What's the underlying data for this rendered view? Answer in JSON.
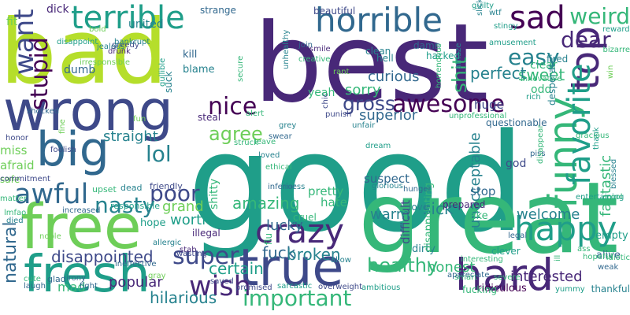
{
  "word_cloud": {
    "palette": [
      "#440154",
      "#482878",
      "#3e4989",
      "#31688e",
      "#26828e",
      "#1f9e89",
      "#35b779",
      "#6ece58",
      "#b5de2b",
      "#fde725"
    ],
    "words": [
      {
        "text": "bad"
      },
      {
        "text": "best"
      },
      {
        "text": "good"
      },
      {
        "text": "great"
      },
      {
        "text": "wrong"
      },
      {
        "text": "free"
      },
      {
        "text": "fresh"
      },
      {
        "text": "big"
      },
      {
        "text": "true"
      },
      {
        "text": "top"
      },
      {
        "text": "funny"
      },
      {
        "text": "hard"
      },
      {
        "text": "horrible"
      },
      {
        "text": "terrible"
      },
      {
        "text": "sad"
      },
      {
        "text": "favorite"
      },
      {
        "text": "happy"
      },
      {
        "text": "crazy"
      },
      {
        "text": "awful"
      },
      {
        "text": "wish"
      },
      {
        "text": "want"
      },
      {
        "text": "nice"
      },
      {
        "text": "important"
      },
      {
        "text": "awesome"
      },
      {
        "text": "weird"
      },
      {
        "text": "dear"
      },
      {
        "text": "easy"
      },
      {
        "text": "stupid"
      },
      {
        "text": "super"
      },
      {
        "text": "lol"
      },
      {
        "text": "poor"
      },
      {
        "text": "nasty"
      },
      {
        "text": "gross"
      },
      {
        "text": "shit"
      },
      {
        "text": "agree"
      },
      {
        "text": "healthy"
      },
      {
        "text": "natural"
      },
      {
        "text": "disappointed"
      },
      {
        "text": "fuck"
      },
      {
        "text": "broken"
      },
      {
        "text": "sweet"
      },
      {
        "text": "perfect"
      },
      {
        "text": "sick"
      },
      {
        "text": "amazing"
      },
      {
        "text": "certain"
      },
      {
        "text": "hilarious"
      },
      {
        "text": "interested"
      },
      {
        "text": "fantastic"
      },
      {
        "text": "curious"
      },
      {
        "text": "sorry"
      },
      {
        "text": "superior"
      },
      {
        "text": "unacceptable"
      },
      {
        "text": "welcome"
      },
      {
        "text": "straight"
      },
      {
        "text": "popular"
      },
      {
        "text": "grand"
      },
      {
        "text": "worth"
      },
      {
        "text": "lucky"
      },
      {
        "text": "warm"
      },
      {
        "text": "honest"
      },
      {
        "text": "difficult"
      },
      {
        "text": "pretty"
      },
      {
        "text": "hate"
      },
      {
        "text": "suspect"
      },
      {
        "text": "stop"
      },
      {
        "text": "huge"
      },
      {
        "text": "odd"
      },
      {
        "text": "clear"
      },
      {
        "text": "mad"
      },
      {
        "text": "united"
      },
      {
        "text": "dumb"
      },
      {
        "text": "fit"
      },
      {
        "text": "dick"
      },
      {
        "text": "kill"
      },
      {
        "text": "blame"
      },
      {
        "text": "yeah"
      },
      {
        "text": "hope"
      },
      {
        "text": "fake"
      },
      {
        "text": "empty"
      },
      {
        "text": "alive"
      },
      {
        "text": "dirty"
      },
      {
        "text": "disappointing"
      },
      {
        "text": "ridiculous"
      },
      {
        "text": "miss"
      },
      {
        "text": "afraid"
      },
      {
        "text": "safe"
      },
      {
        "text": "steal"
      },
      {
        "text": "beautiful"
      },
      {
        "text": "strange"
      },
      {
        "text": "clean"
      },
      {
        "text": "hell"
      },
      {
        "text": "damn"
      },
      {
        "text": "hacked"
      },
      {
        "text": "fired"
      },
      {
        "text": "bizarre"
      },
      {
        "text": "reward"
      },
      {
        "text": "guilty"
      },
      {
        "text": "slick"
      },
      {
        "text": "stingy"
      },
      {
        "text": "amusement"
      },
      {
        "text": "innovative"
      },
      {
        "text": "rich"
      },
      {
        "text": "win"
      },
      {
        "text": "desperate"
      },
      {
        "text": "questionable"
      },
      {
        "text": "unprofessional"
      },
      {
        "text": "unfair"
      },
      {
        "text": "punish"
      },
      {
        "text": "fun"
      },
      {
        "text": "fine"
      },
      {
        "text": "honor"
      },
      {
        "text": "foolish"
      },
      {
        "text": "commitment"
      },
      {
        "text": "upset"
      },
      {
        "text": "dead"
      },
      {
        "text": "friendly"
      },
      {
        "text": "responsible"
      },
      {
        "text": "increased"
      },
      {
        "text": "matter"
      },
      {
        "text": "lmfao"
      },
      {
        "text": "died"
      },
      {
        "text": "noble"
      },
      {
        "text": "ineffective"
      },
      {
        "text": "allergic"
      },
      {
        "text": "glad"
      },
      {
        "text": "cute"
      },
      {
        "text": "laugh"
      },
      {
        "text": "irony"
      },
      {
        "text": "fight"
      },
      {
        "text": "gray"
      },
      {
        "text": "saved"
      },
      {
        "text": "promised"
      },
      {
        "text": "sarcastic"
      },
      {
        "text": "overweight"
      },
      {
        "text": "ambitious"
      },
      {
        "text": "fucking"
      },
      {
        "text": "severe"
      },
      {
        "text": "yummy"
      },
      {
        "text": "thankful"
      },
      {
        "text": "idiotic"
      },
      {
        "text": "weak"
      },
      {
        "text": "hopeful"
      },
      {
        "text": "ass"
      },
      {
        "text": "ill"
      },
      {
        "text": "interesting"
      },
      {
        "text": "smart"
      },
      {
        "text": "clever"
      },
      {
        "text": "legal"
      },
      {
        "text": "prepared"
      },
      {
        "text": "appreciate"
      },
      {
        "text": "allow"
      },
      {
        "text": "flu"
      },
      {
        "text": "cruel"
      },
      {
        "text": "shitty"
      },
      {
        "text": "illegal"
      },
      {
        "text": "stab"
      },
      {
        "text": "wasting"
      },
      {
        "text": "inferior"
      },
      {
        "text": "ethical"
      },
      {
        "text": "loved"
      },
      {
        "text": "mess"
      },
      {
        "text": "dream"
      },
      {
        "text": "glorious"
      },
      {
        "text": "hunger"
      },
      {
        "text": "love"
      },
      {
        "text": "god"
      },
      {
        "text": "piss"
      },
      {
        "text": "disappear"
      },
      {
        "text": "gracious"
      },
      {
        "text": "thank"
      },
      {
        "text": "cool"
      },
      {
        "text": "entertaining"
      },
      {
        "text": "swear"
      },
      {
        "text": "leave"
      },
      {
        "text": "struck"
      },
      {
        "text": "grey"
      },
      {
        "text": "alert"
      },
      {
        "text": "rant"
      },
      {
        "text": "chic"
      },
      {
        "text": "smile"
      },
      {
        "text": "creative"
      },
      {
        "text": "unhealthy"
      },
      {
        "text": "join"
      },
      {
        "text": "secure"
      },
      {
        "text": "suck"
      },
      {
        "text": "gullible"
      },
      {
        "text": "irresponsible"
      },
      {
        "text": "jealous"
      },
      {
        "text": "disappoint"
      },
      {
        "text": "greedy"
      },
      {
        "text": "bankrupt"
      },
      {
        "text": "drunk"
      },
      {
        "text": "bold"
      },
      {
        "text": "shocked"
      },
      {
        "text": "horrendous"
      },
      {
        "text": "wtf"
      },
      {
        "text": "amaze"
      },
      {
        "text": "blessed"
      },
      {
        "text": "arrogant"
      }
    ]
  }
}
